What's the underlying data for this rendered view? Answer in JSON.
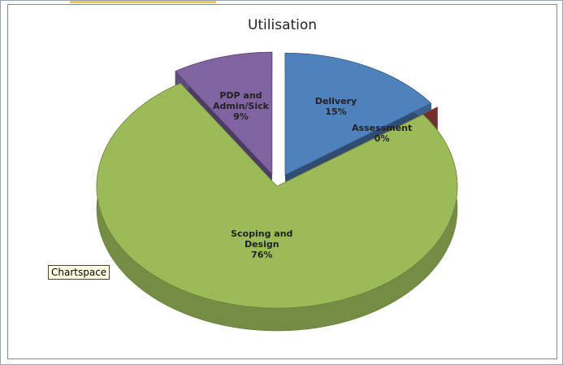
{
  "chart_data": {
    "type": "pie",
    "title": "Utilisation",
    "categories": [
      "Delivery",
      "Assessment",
      "Scoping and Design",
      "PDP and Admin/Sick"
    ],
    "values": [
      15,
      0,
      76,
      9
    ],
    "value_labels": [
      "15%",
      "0%",
      "76%",
      "9%"
    ],
    "colors": [
      "#4f81bd",
      "#c0504d",
      "#9bbb59",
      "#8064a2"
    ]
  },
  "tooltip": "Chartspace"
}
